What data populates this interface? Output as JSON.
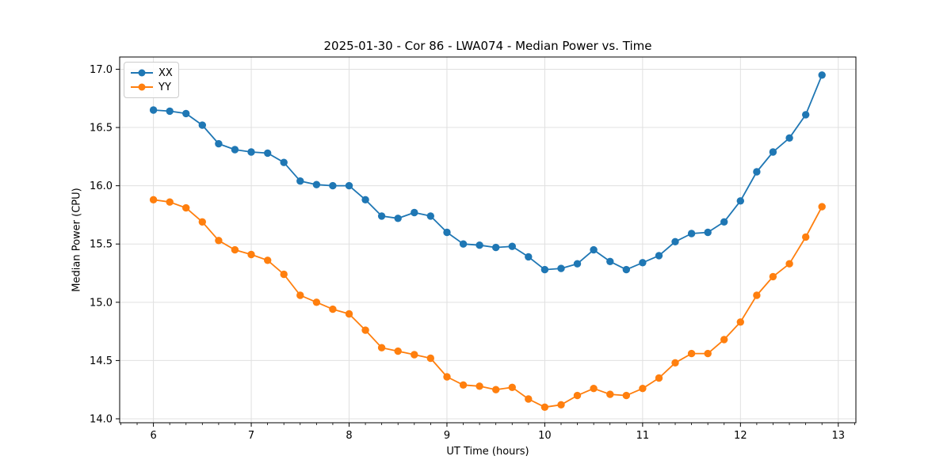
{
  "chart_data": {
    "type": "line",
    "title": "2025-01-30 - Cor 86 - LWA074 - Median Power vs. Time",
    "xlabel": "UT Time (hours)",
    "ylabel": "Median Power (CPU)",
    "x": [
      6.0,
      6.167,
      6.333,
      6.5,
      6.667,
      6.833,
      7.0,
      7.167,
      7.333,
      7.5,
      7.667,
      7.833,
      8.0,
      8.167,
      8.333,
      8.5,
      8.667,
      8.833,
      9.0,
      9.167,
      9.333,
      9.5,
      9.667,
      9.833,
      10.0,
      10.167,
      10.333,
      10.5,
      10.667,
      10.833,
      11.0,
      11.167,
      11.333,
      11.5,
      11.667,
      11.833,
      12.0,
      12.167,
      12.333,
      12.5,
      12.667,
      12.833
    ],
    "series": [
      {
        "name": "XX",
        "color": "#1f77b4",
        "values": [
          16.65,
          16.64,
          16.62,
          16.52,
          16.36,
          16.31,
          16.29,
          16.28,
          16.2,
          16.04,
          16.01,
          16.0,
          16.0,
          15.88,
          15.74,
          15.72,
          15.77,
          15.74,
          15.6,
          15.5,
          15.49,
          15.47,
          15.48,
          15.39,
          15.28,
          15.29,
          15.33,
          15.45,
          15.35,
          15.28,
          15.34,
          15.4,
          15.52,
          15.59,
          15.6,
          15.69,
          15.87,
          16.12,
          16.29,
          16.41,
          16.61,
          16.95
        ]
      },
      {
        "name": "YY",
        "color": "#ff7f0e",
        "values": [
          15.88,
          15.86,
          15.81,
          15.69,
          15.53,
          15.45,
          15.41,
          15.36,
          15.24,
          15.06,
          15.0,
          14.94,
          14.9,
          14.76,
          14.61,
          14.58,
          14.55,
          14.52,
          14.36,
          14.29,
          14.28,
          14.25,
          14.27,
          14.17,
          14.1,
          14.12,
          14.2,
          14.26,
          14.21,
          14.2,
          14.26,
          14.35,
          14.48,
          14.56,
          14.56,
          14.68,
          14.83,
          15.06,
          15.22,
          15.33,
          15.56,
          15.82
        ]
      }
    ],
    "xticks": [
      6,
      7,
      8,
      9,
      10,
      11,
      12,
      13
    ],
    "yticks": [
      14.0,
      14.5,
      15.0,
      15.5,
      16.0,
      16.5,
      17.0
    ],
    "xlim": [
      5.655,
      13.18
    ],
    "ylim": [
      13.966,
      17.105
    ],
    "x_minor_tick_step": 0.1667,
    "grid": true,
    "legend_location": "upper left",
    "marker": "circle",
    "colors": {
      "grid": "#e0e0e0",
      "spine": "#000000",
      "text": "#000000",
      "background": "#ffffff"
    }
  }
}
